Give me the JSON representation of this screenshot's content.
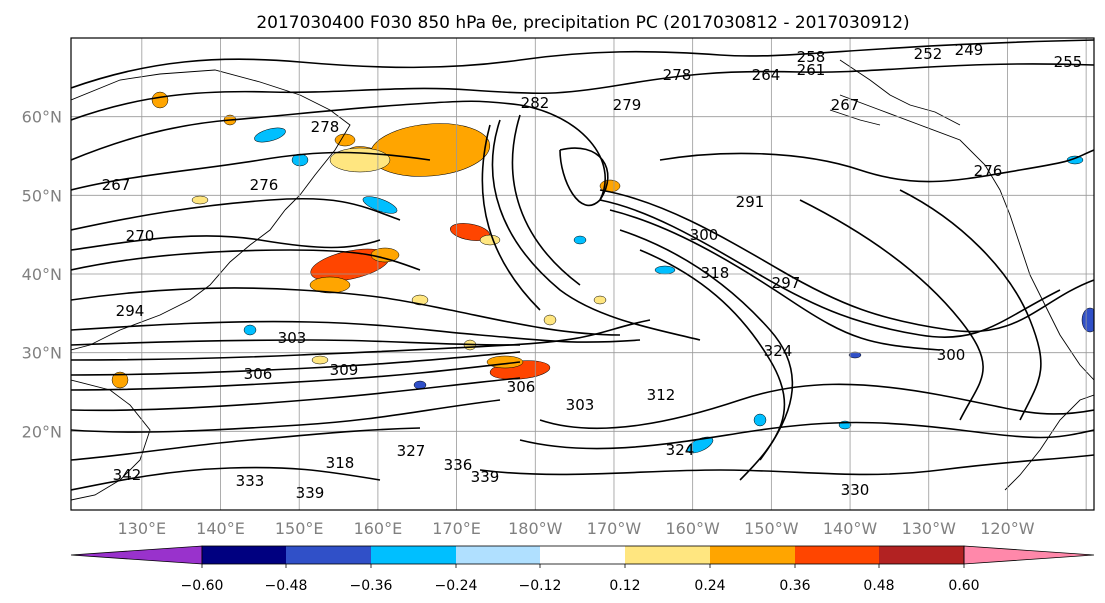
{
  "chart_data": {
    "type": "map",
    "title": "2017030400 F030 850 hPa θe, precipitation PC (2017030812 - 2017030912)",
    "map": {
      "lon_labels": [
        "130°E",
        "140°E",
        "150°E",
        "160°E",
        "170°E",
        "180°W",
        "170°W",
        "160°W",
        "150°W",
        "140°W",
        "130°W",
        "120°W"
      ],
      "lat_labels": [
        "60°N",
        "50°N",
        "40°N",
        "30°N",
        "20°N"
      ],
      "lon_range_deg_east": [
        121,
        251
      ],
      "lat_range_deg_north": [
        10,
        70
      ],
      "grid": true
    },
    "contour_labels": [
      "258",
      "249",
      "255",
      "252",
      "278",
      "264",
      "261",
      "267",
      "282",
      "279",
      "278",
      "291",
      "276",
      "276",
      "267",
      "300",
      "270",
      "318",
      "297",
      "294",
      "303",
      "306",
      "309",
      "324",
      "300",
      "303",
      "306",
      "312",
      "318",
      "324",
      "327",
      "336",
      "339",
      "330",
      "342",
      "333",
      "339"
    ],
    "colorbar": {
      "ticks": [
        "−0.60",
        "−0.48",
        "−0.36",
        "−0.24",
        "−0.12",
        "0.12",
        "0.24",
        "0.36",
        "0.48",
        "0.60"
      ],
      "colors": [
        "#9932CC",
        "#000080",
        "#3050C8",
        "#00BFFF",
        "#B0E0FF",
        "#FFFFFF",
        "#FFE680",
        "#FFA500",
        "#FF4500",
        "#B22222",
        "#FF88AA"
      ],
      "extend": "both"
    }
  }
}
